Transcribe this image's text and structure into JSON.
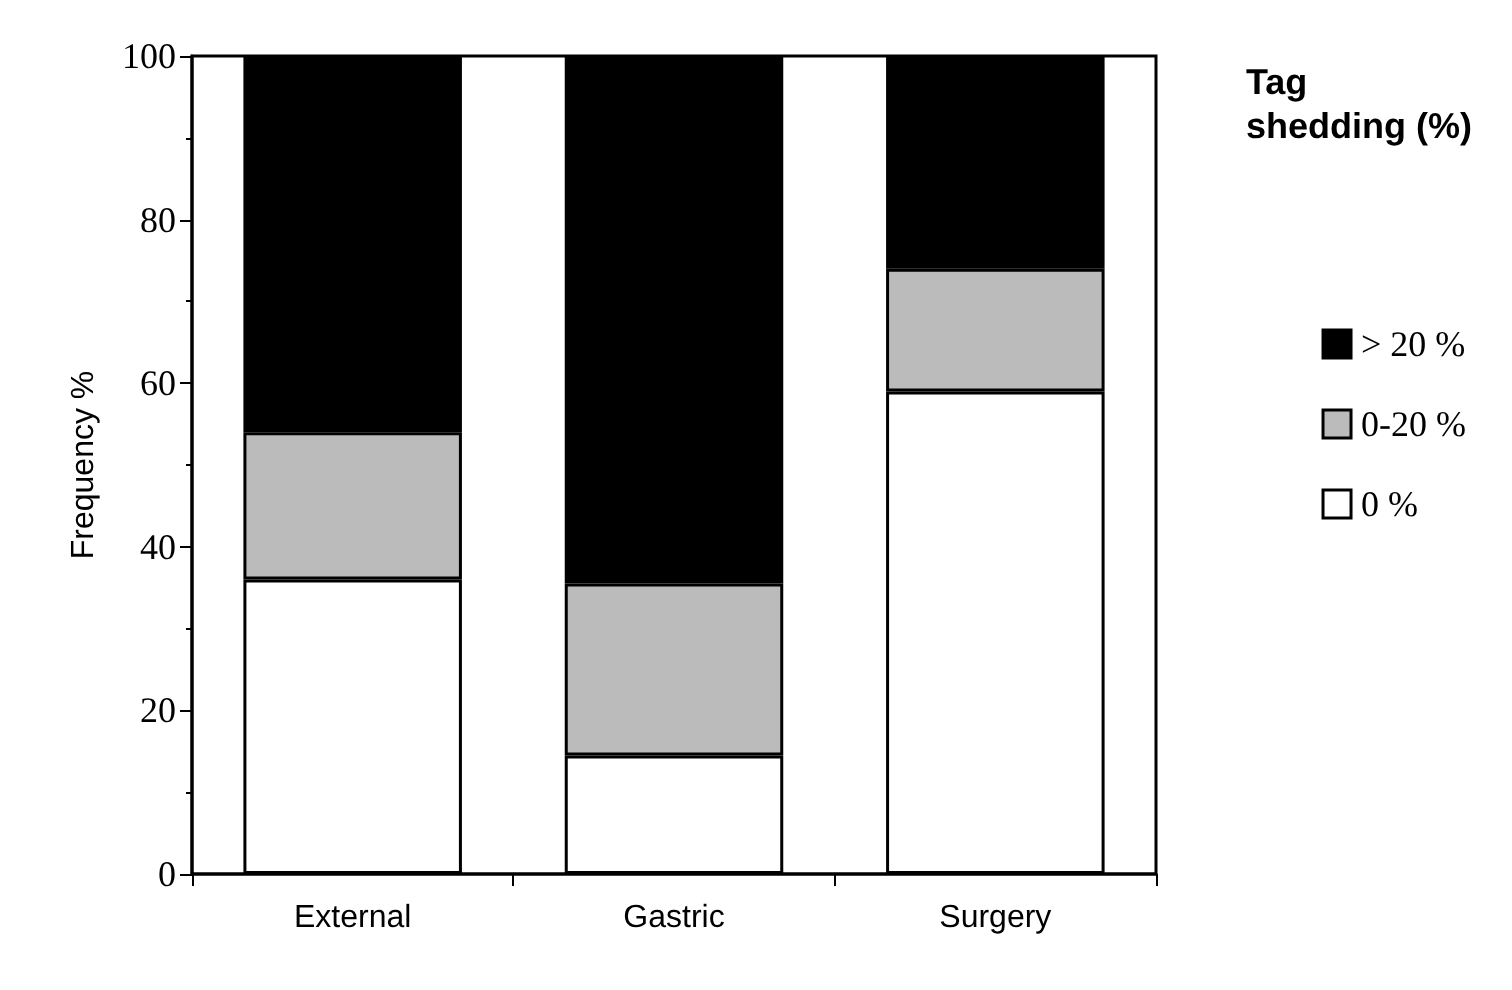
{
  "chart_data": {
    "type": "bar",
    "stacked": true,
    "ylabel": "Frequency %",
    "legend_title": "Tag shedding (%)",
    "categories": [
      "External",
      "Gastric",
      "Surgery"
    ],
    "series": [
      {
        "name": "0 %",
        "color": "#ffffff",
        "values": [
          36,
          14.5,
          59
        ]
      },
      {
        "name": "0-20 %",
        "color": "#bbbbbb",
        "values": [
          18,
          21,
          15
        ]
      },
      {
        "name": "> 20 %",
        "color": "#000000",
        "values": [
          46,
          64.5,
          26
        ]
      }
    ],
    "ylim": [
      0,
      100
    ],
    "yticks": [
      0,
      20,
      40,
      60,
      80,
      100
    ],
    "grid": false,
    "legend": "right"
  }
}
